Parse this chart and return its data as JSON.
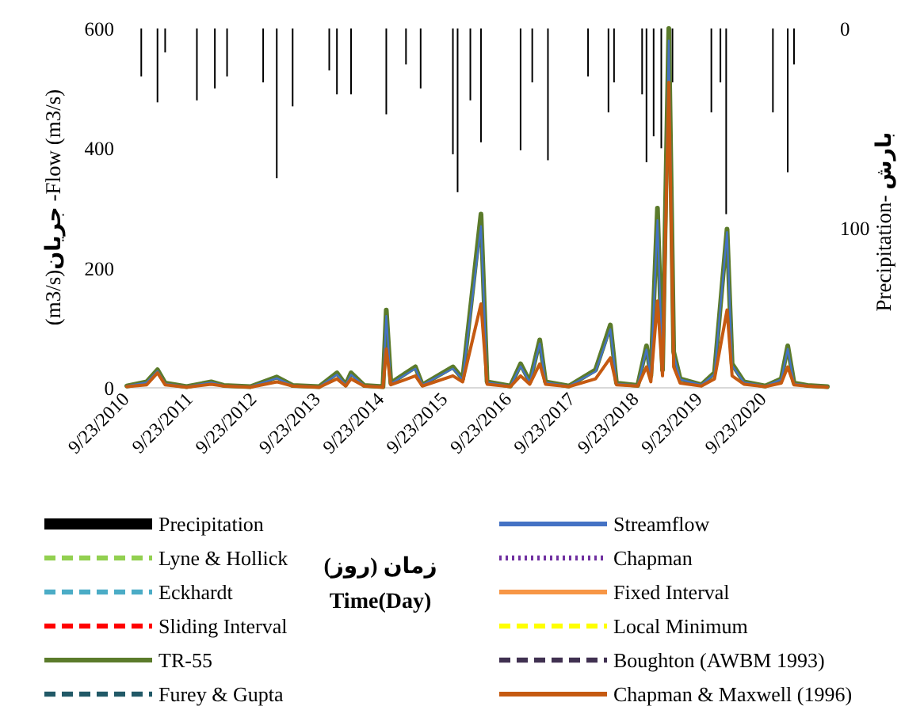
{
  "chart_data": {
    "type": "line",
    "ylabel": "(m3/s)**جریان** -Flow (m3/s)",
    "y2label": "Precipitation- **بارش**",
    "annotations": [
      "زمان (روز)",
      "Time(Day)"
    ],
    "xlim": [
      "2010-09-23",
      "2021-09-22"
    ],
    "xticks": [
      {
        "value": "2010-09-23",
        "label": "9/23/2010"
      },
      {
        "value": "2011-09-23",
        "label": "9/23/2011"
      },
      {
        "value": "2012-09-23",
        "label": "9/23/2012"
      },
      {
        "value": "2013-09-23",
        "label": "9/23/2013"
      },
      {
        "value": "2014-09-23",
        "label": "9/23/2014"
      },
      {
        "value": "2015-09-23",
        "label": "9/23/2015"
      },
      {
        "value": "2016-09-23",
        "label": "9/23/2016"
      },
      {
        "value": "2017-09-23",
        "label": "9/23/2017"
      },
      {
        "value": "2018-09-23",
        "label": "9/23/2018"
      },
      {
        "value": "2019-09-23",
        "label": "9/23/2019"
      },
      {
        "value": "2020-09-23",
        "label": "9/23/2020"
      }
    ],
    "ylim": [
      0,
      600
    ],
    "yticks": [
      0,
      200,
      400,
      600
    ],
    "y2lim": [
      180,
      0
    ],
    "y2ticks": [
      0,
      100
    ],
    "legend": "bottom",
    "marker": "none",
    "grid": false,
    "x": [
      "2010-09-23",
      "2011-01-15",
      "2011-03-18",
      "2011-05-01",
      "2011-09-01",
      "2012-01-20",
      "2012-04-01",
      "2012-09-01",
      "2013-01-30",
      "2013-05-01",
      "2013-10-01",
      "2014-01-10",
      "2014-03-01",
      "2014-04-01",
      "2014-06-15",
      "2014-10-01",
      "2014-10-20",
      "2014-11-15",
      "2015-04-05",
      "2015-05-15",
      "2015-11-06",
      "2016-01-01",
      "2016-04-15",
      "2016-05-20",
      "2016-10-01",
      "2016-11-28",
      "2017-01-20",
      "2017-03-18",
      "2017-04-20",
      "2017-09-01",
      "2018-02-01",
      "2018-04-27",
      "2018-06-01",
      "2018-10-01",
      "2018-11-20",
      "2018-12-15",
      "2019-01-22",
      "2019-02-20",
      "2019-03-28",
      "2019-04-25",
      "2019-06-01",
      "2019-10-01",
      "2019-12-15",
      "2020-02-25",
      "2020-03-25",
      "2020-06-01",
      "2020-10-01",
      "2021-01-01",
      "2021-02-07",
      "2021-03-15",
      "2021-06-01",
      "2021-09-22"
    ],
    "series": [
      {
        "name": "Precipitation",
        "type": "bar",
        "axis": "y2",
        "color": "#000000",
        "x": [
          "2010-12-15",
          "2011-03-18",
          "2011-05-01",
          "2011-10-30",
          "2012-02-10",
          "2012-04-20",
          "2012-11-13",
          "2013-01-30",
          "2013-05-01",
          "2013-11-27",
          "2014-01-10",
          "2014-04-01",
          "2014-10-20",
          "2015-02-10",
          "2015-05-05",
          "2015-11-06",
          "2015-12-03",
          "2016-02-14",
          "2016-04-15",
          "2016-11-28",
          "2017-02-03",
          "2017-05-04",
          "2017-12-20",
          "2018-04-16",
          "2018-05-18",
          "2018-10-26",
          "2018-11-20",
          "2018-12-31",
          "2019-02-13",
          "2019-04-18",
          "2019-11-27",
          "2020-01-18",
          "2020-02-20",
          "2020-11-14",
          "2021-02-07",
          "2021-03-15"
        ],
        "values": [
          24,
          37,
          12,
          36,
          30,
          24,
          27,
          75,
          39,
          21,
          33,
          33,
          43,
          18,
          30,
          63,
          82,
          36,
          57,
          61,
          27,
          66,
          24,
          42,
          27,
          33,
          67,
          54,
          60,
          27,
          42,
          27,
          93,
          42,
          72,
          18
        ]
      },
      {
        "name": "Streamflow",
        "color": "#4472c4",
        "line_style": "solid",
        "values": [
          3,
          9,
          28,
          7,
          2,
          9,
          4,
          2,
          16,
          4,
          2,
          22,
          5,
          22,
          4,
          2,
          120,
          7,
          32,
          5,
          32,
          14,
          270,
          9,
          3,
          36,
          9,
          74,
          9,
          3,
          27,
          98,
          7,
          4,
          64,
          18,
          280,
          28,
          580,
          55,
          14,
          5,
          23,
          260,
          37,
          9,
          3,
          14,
          65,
          7,
          4,
          2
        ]
      },
      {
        "name": "Lyne & Hollick",
        "color": "#92d050",
        "line_style": "dashed",
        "values": [
          null,
          null,
          null,
          null,
          null,
          null,
          null,
          null,
          null,
          null,
          null,
          null,
          null,
          null,
          null,
          null,
          null,
          null,
          null,
          null,
          null,
          null,
          null,
          null,
          null,
          null,
          null,
          null,
          null,
          null,
          null,
          null,
          null,
          null,
          null,
          null,
          null,
          null,
          null,
          null,
          null,
          null,
          null,
          null,
          null,
          null,
          null,
          null,
          null,
          null,
          null,
          null
        ]
      },
      {
        "name": "Chapman",
        "color": "#7030a0",
        "line_style": "dotted",
        "values": [
          null,
          null,
          null,
          null,
          null,
          null,
          null,
          null,
          null,
          null,
          null,
          null,
          null,
          null,
          null,
          null,
          null,
          null,
          null,
          null,
          null,
          null,
          null,
          null,
          null,
          null,
          null,
          null,
          null,
          null,
          null,
          null,
          null,
          null,
          null,
          null,
          null,
          null,
          null,
          null,
          null,
          null,
          null,
          null,
          null,
          null,
          null,
          null,
          null,
          null,
          null,
          null
        ]
      },
      {
        "name": "Eckhardt",
        "color": "#4bacc6",
        "line_style": "dashed",
        "values": [
          null,
          null,
          null,
          null,
          null,
          null,
          null,
          null,
          null,
          null,
          null,
          null,
          null,
          null,
          null,
          null,
          null,
          null,
          null,
          null,
          null,
          null,
          null,
          null,
          null,
          null,
          null,
          null,
          null,
          null,
          null,
          null,
          null,
          null,
          null,
          null,
          null,
          null,
          null,
          null,
          null,
          null,
          null,
          null,
          null,
          null,
          null,
          null,
          null,
          null,
          null,
          null
        ]
      },
      {
        "name": "Fixed Interval",
        "color": "#f79646",
        "line_style": "solid",
        "values": [
          null,
          null,
          null,
          null,
          null,
          null,
          null,
          null,
          null,
          null,
          null,
          null,
          null,
          null,
          null,
          null,
          null,
          null,
          null,
          null,
          null,
          null,
          null,
          null,
          null,
          null,
          null,
          null,
          null,
          null,
          null,
          null,
          null,
          null,
          null,
          null,
          null,
          null,
          null,
          null,
          null,
          null,
          null,
          null,
          null,
          null,
          null,
          null,
          null,
          null,
          null,
          null
        ]
      },
      {
        "name": "Sliding Interval",
        "color": "#ff0000",
        "line_style": "dashed",
        "values": [
          null,
          null,
          null,
          null,
          null,
          null,
          null,
          null,
          null,
          null,
          null,
          null,
          null,
          null,
          null,
          null,
          null,
          null,
          null,
          null,
          null,
          null,
          null,
          null,
          null,
          null,
          null,
          null,
          null,
          null,
          null,
          null,
          null,
          null,
          null,
          null,
          null,
          null,
          null,
          null,
          null,
          null,
          null,
          null,
          null,
          null,
          null,
          null,
          null,
          null,
          null,
          null
        ]
      },
      {
        "name": "Local Minimum",
        "color": "#ffff00",
        "line_style": "dashed",
        "values": [
          null,
          null,
          null,
          null,
          null,
          null,
          null,
          null,
          null,
          null,
          null,
          null,
          null,
          null,
          null,
          null,
          null,
          null,
          null,
          null,
          null,
          null,
          null,
          null,
          null,
          null,
          null,
          null,
          null,
          null,
          null,
          null,
          null,
          null,
          null,
          null,
          null,
          null,
          null,
          null,
          null,
          null,
          null,
          null,
          null,
          null,
          null,
          null,
          null,
          null,
          null,
          null
        ]
      },
      {
        "name": "TR-55",
        "color": "#5b7b2b",
        "line_style": "solid",
        "values": [
          3,
          10,
          30,
          8,
          2,
          10,
          4,
          2,
          18,
          4,
          2,
          25,
          5,
          25,
          4,
          2,
          130,
          8,
          35,
          5,
          35,
          15,
          290,
          10,
          3,
          40,
          10,
          80,
          10,
          3,
          30,
          105,
          8,
          4,
          70,
          20,
          300,
          30,
          600,
          60,
          15,
          5,
          25,
          265,
          40,
          10,
          3,
          15,
          70,
          8,
          4,
          2
        ]
      },
      {
        "name": "Boughton (AWBM 1993)",
        "color": "#403151",
        "line_style": "dashed",
        "values": [
          null,
          null,
          null,
          null,
          null,
          null,
          null,
          null,
          null,
          null,
          null,
          null,
          null,
          null,
          null,
          null,
          null,
          null,
          null,
          null,
          null,
          null,
          null,
          null,
          null,
          null,
          null,
          null,
          null,
          null,
          null,
          null,
          null,
          null,
          null,
          null,
          null,
          null,
          null,
          null,
          null,
          null,
          null,
          null,
          null,
          null,
          null,
          null,
          null,
          null,
          null,
          null
        ]
      },
      {
        "name": "Furey & Gupta",
        "color": "#215967",
        "line_style": "dashed",
        "values": [
          null,
          null,
          null,
          null,
          null,
          null,
          null,
          null,
          null,
          null,
          null,
          null,
          null,
          null,
          null,
          null,
          null,
          null,
          null,
          null,
          null,
          null,
          null,
          null,
          null,
          null,
          null,
          null,
          null,
          null,
          null,
          null,
          null,
          null,
          null,
          null,
          null,
          null,
          null,
          null,
          null,
          null,
          null,
          null,
          null,
          null,
          null,
          null,
          null,
          null,
          null,
          null
        ]
      },
      {
        "name": "Chapman & Maxwell (1996)",
        "color": "#c55a11",
        "line_style": "solid",
        "values": [
          2,
          5,
          25,
          5,
          1,
          6,
          3,
          1,
          10,
          3,
          1,
          15,
          3,
          15,
          3,
          1,
          65,
          5,
          20,
          3,
          20,
          10,
          140,
          6,
          2,
          20,
          6,
          40,
          6,
          2,
          15,
          50,
          5,
          3,
          35,
          10,
          145,
          20,
          510,
          35,
          8,
          3,
          15,
          130,
          20,
          6,
          2,
          8,
          35,
          5,
          3,
          1
        ]
      }
    ]
  }
}
